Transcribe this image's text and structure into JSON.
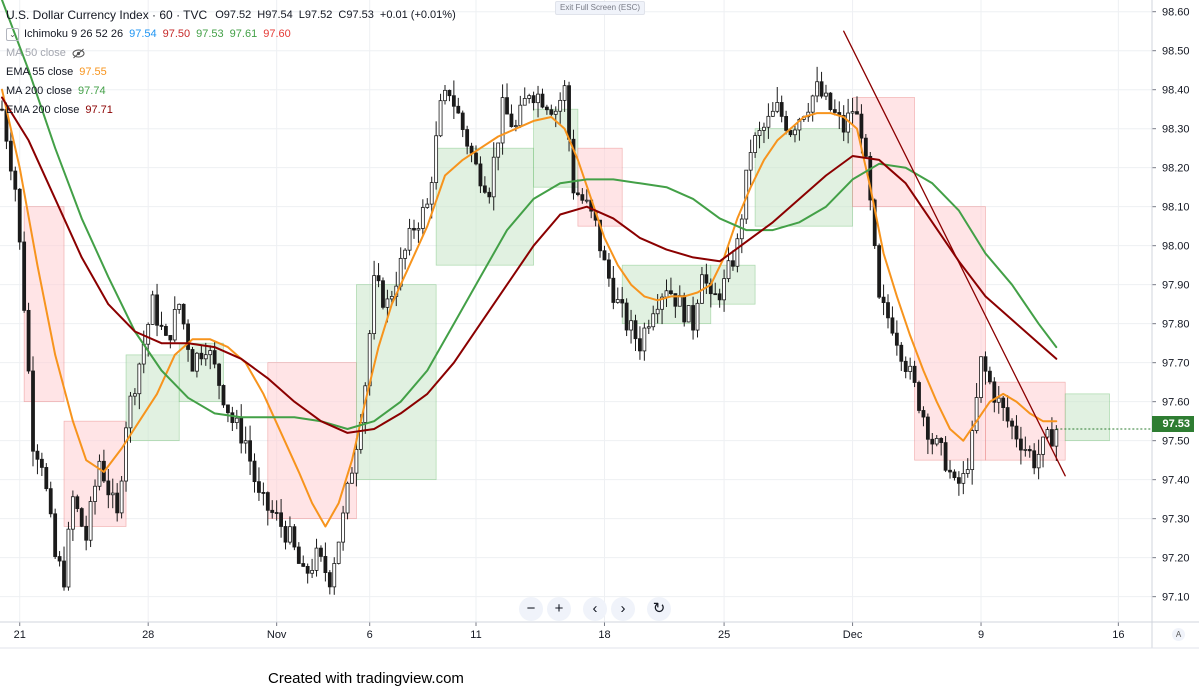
{
  "header": {
    "symbol_title": "U.S. Dollar Currency Index · 60 · TVC",
    "ohlc": [
      "O97.52",
      "H97.54",
      "L97.52",
      "C97.53",
      "+0.01 (+0.01%)"
    ],
    "exit_fullscreen_label": "Exit Full Screen (ESC)"
  },
  "indicators": [
    {
      "name": "Ichimoku 9 26 52 26",
      "values": [
        "97.54",
        "97.50",
        "97.53",
        "97.61",
        "97.60"
      ],
      "colors": [
        "#2196f3",
        "#c62828",
        "#43a047",
        "#43a047",
        "#e53935"
      ],
      "collapse_glyph": "⌄"
    },
    {
      "name": "MA 50 close",
      "values": [],
      "colors": [],
      "hidden_icon": "eye-crossed-icon"
    },
    {
      "name": "EMA 55 close",
      "values": [
        "97.55"
      ],
      "colors": [
        "#f7941d"
      ]
    },
    {
      "name": "MA 200 close",
      "values": [
        "97.74"
      ],
      "colors": [
        "#43a047"
      ]
    },
    {
      "name": "EMA 200 close",
      "values": [
        "97.71"
      ],
      "colors": [
        "#8b0000"
      ]
    }
  ],
  "nav": {
    "zoom_out": "−",
    "zoom_in": "+",
    "scroll_left": "‹",
    "scroll_right": "›",
    "reset": "↻"
  },
  "last_price_label": "97.53",
  "corner_label": "A",
  "footer_text": "Created with tradingview.com",
  "colors": {
    "up": "#26a69a",
    "down": "#ef5350",
    "candle": "#1b1b1b",
    "ema55": "#f7941d",
    "ma200": "#43a047",
    "ema200": "#8b0000",
    "trendline": "#8b0000",
    "cloud_bull": "#c8e6c9",
    "cloud_bear": "#ffcdd2",
    "price_tag": "#2e7d32"
  },
  "chart_data": {
    "type": "candlestick",
    "title": "U.S. Dollar Currency Index · 60 · TVC",
    "y_ticks": [
      98.6,
      98.5,
      98.4,
      98.3,
      98.2,
      98.1,
      98.0,
      97.9,
      97.8,
      97.7,
      97.6,
      97.5,
      97.4,
      97.3,
      97.2,
      97.1
    ],
    "y_tick_labels": [
      "98.60",
      "98.50",
      "98.40",
      "98.30",
      "98.20",
      "98.10",
      "98.00",
      "97.90",
      "97.80",
      "97.70",
      "97.60",
      "97.50",
      "97.40",
      "97.30",
      "97.20",
      "97.10"
    ],
    "ylim": [
      97.035,
      98.63
    ],
    "x_tick_labels": [
      "21",
      "28",
      "Nov",
      "6",
      "11",
      "18",
      "25",
      "Dec",
      "9",
      "16"
    ],
    "x_tick_index": [
      4,
      33,
      62,
      83,
      107,
      136,
      163,
      192,
      221,
      252
    ],
    "x_count": 265,
    "price_path": [
      [
        0,
        98.35
      ],
      [
        3,
        98.15
      ],
      [
        5,
        97.85
      ],
      [
        7,
        97.5
      ],
      [
        9,
        97.45
      ],
      [
        12,
        97.2
      ],
      [
        14,
        97.15
      ],
      [
        16,
        97.35
      ],
      [
        19,
        97.25
      ],
      [
        22,
        97.45
      ],
      [
        26,
        97.3
      ],
      [
        28,
        97.55
      ],
      [
        31,
        97.7
      ],
      [
        34,
        97.85
      ],
      [
        37,
        97.75
      ],
      [
        40,
        97.85
      ],
      [
        43,
        97.7
      ],
      [
        46,
        97.75
      ],
      [
        49,
        97.65
      ],
      [
        52,
        97.55
      ],
      [
        55,
        97.5
      ],
      [
        58,
        97.35
      ],
      [
        62,
        97.3
      ],
      [
        65,
        97.25
      ],
      [
        68,
        97.15
      ],
      [
        71,
        97.2
      ],
      [
        74,
        97.15
      ],
      [
        77,
        97.3
      ],
      [
        80,
        97.5
      ],
      [
        82,
        97.65
      ],
      [
        84,
        97.9
      ],
      [
        87,
        97.85
      ],
      [
        90,
        97.95
      ],
      [
        93,
        98.05
      ],
      [
        96,
        98.1
      ],
      [
        99,
        98.35
      ],
      [
        101,
        98.4
      ],
      [
        104,
        98.3
      ],
      [
        107,
        98.2
      ],
      [
        110,
        98.15
      ],
      [
        113,
        98.35
      ],
      [
        116,
        98.3
      ],
      [
        119,
        98.4
      ],
      [
        122,
        98.38
      ],
      [
        125,
        98.35
      ],
      [
        127,
        98.4
      ],
      [
        129,
        98.15
      ],
      [
        132,
        98.1
      ],
      [
        134,
        98.05
      ],
      [
        136,
        97.95
      ],
      [
        139,
        97.85
      ],
      [
        141,
        97.8
      ],
      [
        144,
        97.75
      ],
      [
        147,
        97.85
      ],
      [
        150,
        97.9
      ],
      [
        153,
        97.85
      ],
      [
        156,
        97.8
      ],
      [
        158,
        97.95
      ],
      [
        160,
        97.85
      ],
      [
        163,
        97.9
      ],
      [
        166,
        98.0
      ],
      [
        169,
        98.25
      ],
      [
        172,
        98.3
      ],
      [
        175,
        98.35
      ],
      [
        178,
        98.3
      ],
      [
        181,
        98.35
      ],
      [
        184,
        98.4
      ],
      [
        187,
        98.35
      ],
      [
        190,
        98.3
      ],
      [
        192,
        98.35
      ],
      [
        194,
        98.3
      ],
      [
        196,
        98.1
      ],
      [
        198,
        97.85
      ],
      [
        201,
        97.8
      ],
      [
        204,
        97.7
      ],
      [
        207,
        97.6
      ],
      [
        210,
        97.5
      ],
      [
        213,
        97.45
      ],
      [
        215,
        97.38
      ],
      [
        217,
        97.4
      ],
      [
        219,
        97.5
      ],
      [
        221,
        97.7
      ],
      [
        224,
        97.62
      ],
      [
        227,
        97.55
      ],
      [
        230,
        97.5
      ],
      [
        233,
        97.45
      ],
      [
        236,
        97.5
      ],
      [
        238,
        97.53
      ]
    ],
    "series": [
      {
        "name": "EMA 55 close",
        "color": "#f7941d",
        "x": [
          0,
          4,
          8,
          12,
          16,
          19,
          23,
          27,
          31,
          35,
          39,
          43,
          47,
          51,
          55,
          59,
          63,
          67,
          70,
          73,
          76,
          79,
          82,
          85,
          88,
          92,
          96,
          100,
          104,
          108,
          112,
          116,
          120,
          124,
          127,
          130,
          133,
          136,
          139,
          142,
          145,
          148,
          151,
          154,
          157,
          160,
          163,
          166,
          169,
          172,
          175,
          178,
          181,
          184,
          187,
          190,
          193,
          196,
          199,
          202,
          205,
          208,
          211,
          214,
          217,
          220,
          223,
          226,
          229,
          232,
          235,
          238
        ],
        "y": [
          98.4,
          98.2,
          97.95,
          97.72,
          97.55,
          97.45,
          97.42,
          97.48,
          97.55,
          97.62,
          97.72,
          97.76,
          97.76,
          97.74,
          97.7,
          97.62,
          97.52,
          97.42,
          97.34,
          97.28,
          97.34,
          97.45,
          97.6,
          97.74,
          97.85,
          97.95,
          98.05,
          98.18,
          98.22,
          98.25,
          98.28,
          98.3,
          98.32,
          98.33,
          98.3,
          98.22,
          98.12,
          98.02,
          97.95,
          97.9,
          97.87,
          97.86,
          97.87,
          97.87,
          97.88,
          97.9,
          97.97,
          98.07,
          98.15,
          98.22,
          98.27,
          98.3,
          98.33,
          98.34,
          98.34,
          98.33,
          98.3,
          98.15,
          97.98,
          97.87,
          97.77,
          97.68,
          97.6,
          97.53,
          97.5,
          97.55,
          97.6,
          97.62,
          97.6,
          97.57,
          97.55,
          97.55
        ]
      },
      {
        "name": "MA 200 close",
        "color": "#43a047",
        "x": [
          0,
          6,
          12,
          18,
          24,
          30,
          36,
          42,
          48,
          54,
          60,
          66,
          72,
          78,
          84,
          90,
          96,
          102,
          108,
          114,
          120,
          126,
          132,
          138,
          144,
          150,
          156,
          162,
          168,
          174,
          180,
          186,
          192,
          198,
          204,
          210,
          216,
          222,
          228,
          234,
          238
        ],
        "y": [
          98.63,
          98.45,
          98.25,
          98.07,
          97.92,
          97.78,
          97.68,
          97.61,
          97.57,
          97.56,
          97.56,
          97.56,
          97.55,
          97.53,
          97.55,
          97.6,
          97.68,
          97.8,
          97.92,
          98.04,
          98.12,
          98.16,
          98.17,
          98.17,
          98.16,
          98.15,
          98.12,
          98.07,
          98.04,
          98.04,
          98.06,
          98.1,
          98.17,
          98.21,
          98.2,
          98.16,
          98.09,
          97.98,
          97.9,
          97.8,
          97.74
        ]
      },
      {
        "name": "EMA 200 close",
        "color": "#8b0000",
        "x": [
          0,
          6,
          12,
          18,
          24,
          30,
          36,
          42,
          48,
          54,
          60,
          66,
          72,
          78,
          84,
          90,
          96,
          102,
          108,
          114,
          120,
          126,
          132,
          138,
          144,
          150,
          156,
          162,
          168,
          174,
          180,
          186,
          192,
          198,
          204,
          210,
          216,
          222,
          228,
          234,
          238
        ],
        "y": [
          98.38,
          98.27,
          98.12,
          97.97,
          97.85,
          97.78,
          97.75,
          97.75,
          97.74,
          97.71,
          97.66,
          97.6,
          97.55,
          97.52,
          97.53,
          97.57,
          97.62,
          97.7,
          97.8,
          97.9,
          98.0,
          98.08,
          98.1,
          98.07,
          98.02,
          97.99,
          97.97,
          97.96,
          98.01,
          98.06,
          98.12,
          98.18,
          98.23,
          98.22,
          98.16,
          98.06,
          97.96,
          97.87,
          97.81,
          97.75,
          97.71
        ]
      },
      {
        "name": "Trendline",
        "color": "#8b0000",
        "x": [
          190,
          240
        ],
        "y": [
          98.55,
          97.41
        ]
      }
    ],
    "cloud": [
      {
        "from": 5,
        "to": 14,
        "top": 98.1,
        "bottom": 97.6,
        "kind": "bear"
      },
      {
        "from": 14,
        "to": 28,
        "top": 97.55,
        "bottom": 97.28,
        "kind": "bear"
      },
      {
        "from": 28,
        "to": 40,
        "top": 97.72,
        "bottom": 97.5,
        "kind": "bull"
      },
      {
        "from": 40,
        "to": 50,
        "top": 97.75,
        "bottom": 97.6,
        "kind": "bull"
      },
      {
        "from": 60,
        "to": 80,
        "top": 97.7,
        "bottom": 97.3,
        "kind": "bear"
      },
      {
        "from": 80,
        "to": 98,
        "top": 97.9,
        "bottom": 97.4,
        "kind": "bull"
      },
      {
        "from": 98,
        "to": 120,
        "top": 98.25,
        "bottom": 97.95,
        "kind": "bull"
      },
      {
        "from": 120,
        "to": 130,
        "top": 98.35,
        "bottom": 98.15,
        "kind": "bull"
      },
      {
        "from": 130,
        "to": 140,
        "top": 98.25,
        "bottom": 98.05,
        "kind": "bear"
      },
      {
        "from": 140,
        "to": 160,
        "top": 97.95,
        "bottom": 97.8,
        "kind": "bull"
      },
      {
        "from": 160,
        "to": 170,
        "top": 97.95,
        "bottom": 97.85,
        "kind": "bull"
      },
      {
        "from": 170,
        "to": 192,
        "top": 98.3,
        "bottom": 98.05,
        "kind": "bull"
      },
      {
        "from": 192,
        "to": 206,
        "top": 98.38,
        "bottom": 98.1,
        "kind": "bear"
      },
      {
        "from": 206,
        "to": 222,
        "top": 98.1,
        "bottom": 97.45,
        "kind": "bear"
      },
      {
        "from": 222,
        "to": 240,
        "top": 97.65,
        "bottom": 97.45,
        "kind": "bear"
      },
      {
        "from": 240,
        "to": 250,
        "top": 97.62,
        "bottom": 97.5,
        "kind": "bull"
      }
    ]
  }
}
